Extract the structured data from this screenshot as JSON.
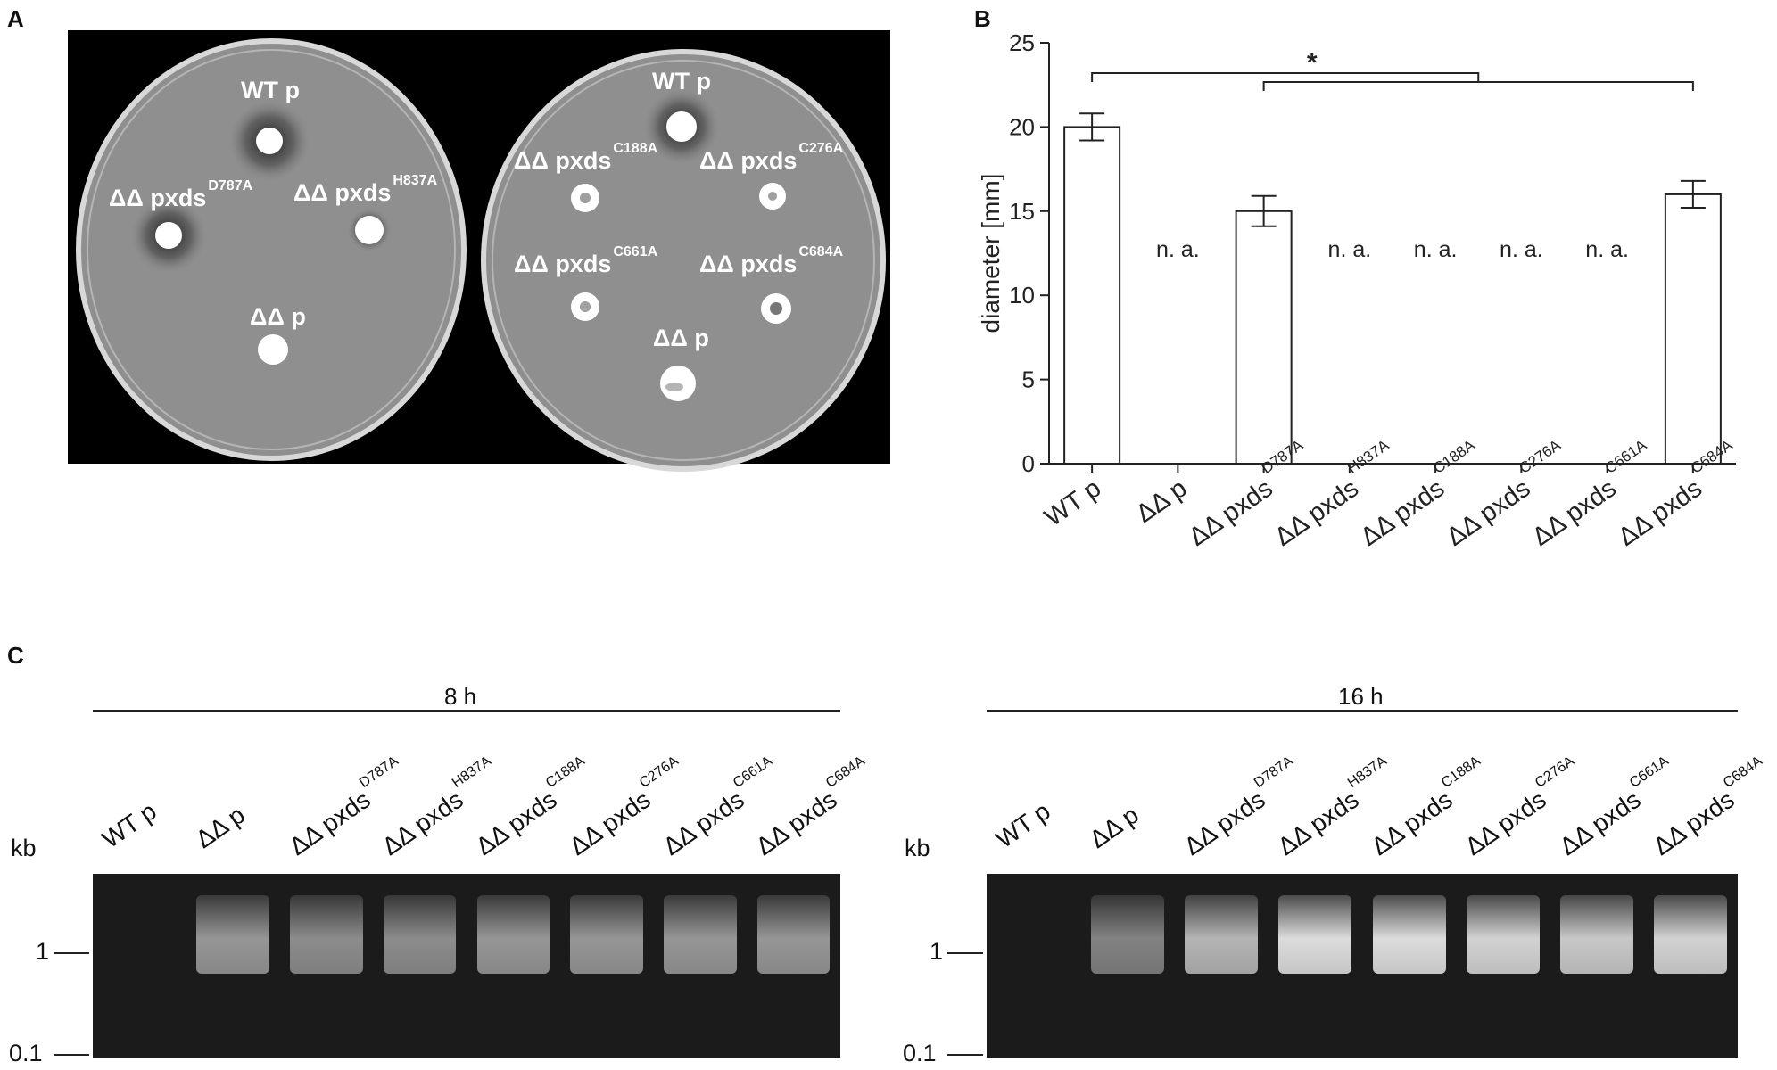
{
  "panels": {
    "a": "A",
    "b": "B",
    "c": "C"
  },
  "plates": {
    "left": {
      "labels": [
        {
          "name": "WT p",
          "superscript": ""
        },
        {
          "name": "ΔΔ pxds",
          "superscript": "D787A"
        },
        {
          "name": "ΔΔ pxds",
          "superscript": "H837A"
        },
        {
          "name": "ΔΔ p",
          "superscript": ""
        }
      ]
    },
    "right": {
      "labels": [
        {
          "name": "WT p",
          "superscript": ""
        },
        {
          "name": "ΔΔ pxds",
          "superscript": "C188A"
        },
        {
          "name": "ΔΔ pxds",
          "superscript": "C276A"
        },
        {
          "name": "ΔΔ pxds",
          "superscript": "C661A"
        },
        {
          "name": "ΔΔ pxds",
          "superscript": "C684A"
        },
        {
          "name": "ΔΔ p",
          "superscript": ""
        }
      ]
    }
  },
  "chart_data": {
    "type": "bar",
    "categories": [
      {
        "name": "WT p",
        "superscript": ""
      },
      {
        "name": "ΔΔ p",
        "superscript": ""
      },
      {
        "name": "ΔΔ pxds",
        "superscript": "D787A"
      },
      {
        "name": "ΔΔ pxds",
        "superscript": "H837A"
      },
      {
        "name": "ΔΔ pxds",
        "superscript": "C188A"
      },
      {
        "name": "ΔΔ pxds",
        "superscript": "C276A"
      },
      {
        "name": "ΔΔ pxds",
        "superscript": "C661A"
      },
      {
        "name": "ΔΔ pxds",
        "superscript": "C684A"
      }
    ],
    "values": [
      20,
      null,
      15,
      null,
      null,
      null,
      null,
      16
    ],
    "errors": [
      0.8,
      null,
      0.9,
      null,
      null,
      null,
      null,
      0.8
    ],
    "na_label": "n. a.",
    "ylabel": "diameter [mm]",
    "ylim": [
      0,
      25
    ],
    "yticks": [
      0,
      5,
      10,
      15,
      20,
      25
    ],
    "significance": {
      "symbol": "*",
      "from": 0,
      "to": [
        2,
        7
      ]
    }
  },
  "gels": {
    "kb_label": "kb",
    "markers": [
      "1",
      "0.1"
    ],
    "lanes": [
      {
        "name": "WT p",
        "superscript": ""
      },
      {
        "name": "ΔΔ p",
        "superscript": ""
      },
      {
        "name": "ΔΔ pxds",
        "superscript": "D787A"
      },
      {
        "name": "ΔΔ pxds",
        "superscript": "H837A"
      },
      {
        "name": "ΔΔ pxds",
        "superscript": "C188A"
      },
      {
        "name": "ΔΔ pxds",
        "superscript": "C276A"
      },
      {
        "name": "ΔΔ pxds",
        "superscript": "C661A"
      },
      {
        "name": "ΔΔ pxds",
        "superscript": "C684A"
      }
    ],
    "left": {
      "time": "8 h",
      "intensity": [
        0,
        0.55,
        0.5,
        0.5,
        0.55,
        0.55,
        0.55,
        0.55
      ]
    },
    "right": {
      "time": "16 h",
      "intensity": [
        0,
        0.45,
        0.7,
        0.9,
        0.9,
        0.85,
        0.8,
        0.85
      ]
    }
  }
}
